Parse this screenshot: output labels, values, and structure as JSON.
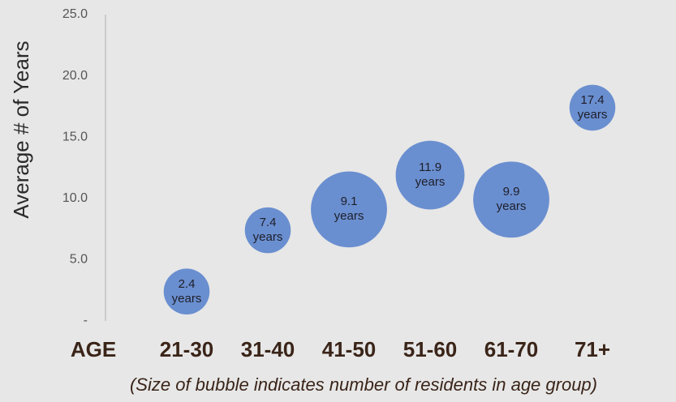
{
  "chart_data": {
    "type": "bubble",
    "ylabel": "Average # of Years",
    "xlabel": "AGE",
    "note": "(Size of bubble indicates number of residents in age group)",
    "categories": [
      "21-30",
      "31-40",
      "41-50",
      "51-60",
      "61-70",
      "71+"
    ],
    "values": [
      2.4,
      7.4,
      9.1,
      11.9,
      9.9,
      17.4
    ],
    "value_labels": [
      "2.4 years",
      "7.4 years",
      "9.1 years",
      "11.9 years",
      "9.9 years",
      "17.4 years"
    ],
    "sizes": [
      8,
      8,
      22,
      18,
      22,
      8
    ],
    "color": "#6a8fd0",
    "ylim": [
      0,
      25
    ],
    "yticks": [
      {
        "value": 0,
        "label": "-"
      },
      {
        "value": 5,
        "label": "5.0"
      },
      {
        "value": 10,
        "label": "10.0"
      },
      {
        "value": 15,
        "label": "15.0"
      },
      {
        "value": 20,
        "label": "20.0"
      },
      {
        "value": 25,
        "label": "25.0"
      }
    ],
    "grid": false
  }
}
